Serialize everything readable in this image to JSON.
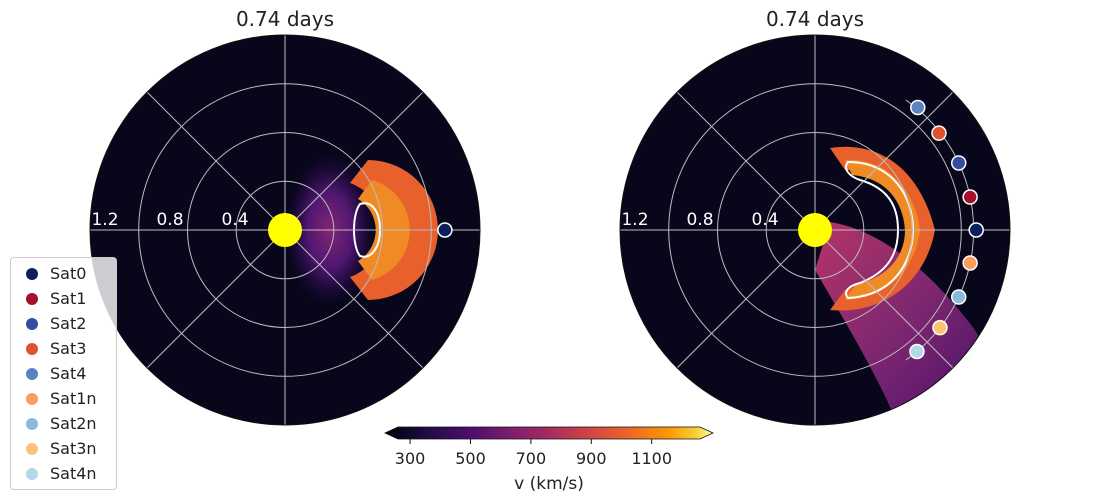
{
  "chart_data": [
    {
      "type": "polar-contour",
      "title": "0.74 days",
      "radial_ticks": [
        "0.4",
        "0.8",
        "1.2"
      ],
      "rlim": [
        0,
        1.5
      ],
      "grid": true,
      "satellites": [
        {
          "name": "Sat0",
          "r": 1.23,
          "theta_deg": 0,
          "color": "#0b1f5e"
        }
      ]
    },
    {
      "type": "polar-contour",
      "title": "0.74 days",
      "radial_ticks": [
        "0.4",
        "0.8",
        "1.2"
      ],
      "rlim": [
        0,
        1.5
      ],
      "grid": true,
      "satellites": [
        {
          "name": "Sat0",
          "r": 1.24,
          "theta_deg": 0,
          "color": "#0b1f5e"
        },
        {
          "name": "Sat1",
          "r": 1.22,
          "theta_deg": 12,
          "color": "#a50f2b"
        },
        {
          "name": "Sat2",
          "r": 1.22,
          "theta_deg": 25,
          "color": "#344da0"
        },
        {
          "name": "Sat3",
          "r": 1.21,
          "theta_deg": 38,
          "color": "#e0512f"
        },
        {
          "name": "Sat4",
          "r": 1.23,
          "theta_deg": 50,
          "color": "#5a84c0"
        },
        {
          "name": "Sat1n",
          "r": 1.22,
          "theta_deg": -12,
          "color": "#fc9d5e"
        },
        {
          "name": "Sat2n",
          "r": 1.22,
          "theta_deg": -25,
          "color": "#8bb9dc"
        },
        {
          "name": "Sat3n",
          "r": 1.22,
          "theta_deg": -38,
          "color": "#fbc473"
        },
        {
          "name": "Sat4n",
          "r": 1.22,
          "theta_deg": -50,
          "color": "#b5d8e8"
        }
      ]
    }
  ],
  "colorbar": {
    "label": "v (km/s)",
    "ticks": [
      "300",
      "500",
      "700",
      "900",
      "1100"
    ],
    "tick_values": [
      300,
      500,
      700,
      900,
      1100
    ],
    "range": [
      260,
      1260
    ]
  },
  "legend": {
    "placement": "lower-left",
    "items": [
      {
        "label": "Sat0",
        "color": "#0b1f5e"
      },
      {
        "label": "Sat1",
        "color": "#a50f2b"
      },
      {
        "label": "Sat2",
        "color": "#344da0"
      },
      {
        "label": "Sat3",
        "color": "#e0512f"
      },
      {
        "label": "Sat4",
        "color": "#5a84c0"
      },
      {
        "label": "Sat1n",
        "color": "#fc9d5e"
      },
      {
        "label": "Sat2n",
        "color": "#8bb9dc"
      },
      {
        "label": "Sat3n",
        "color": "#fbc473"
      },
      {
        "label": "Sat4n",
        "color": "#b5d8e8"
      }
    ]
  },
  "colors": {
    "background": "#07061b",
    "sun": "#ffff00",
    "gridline": "#bdbdbd",
    "front_core": "#f07f22",
    "front_edge": "#e05a2a"
  }
}
